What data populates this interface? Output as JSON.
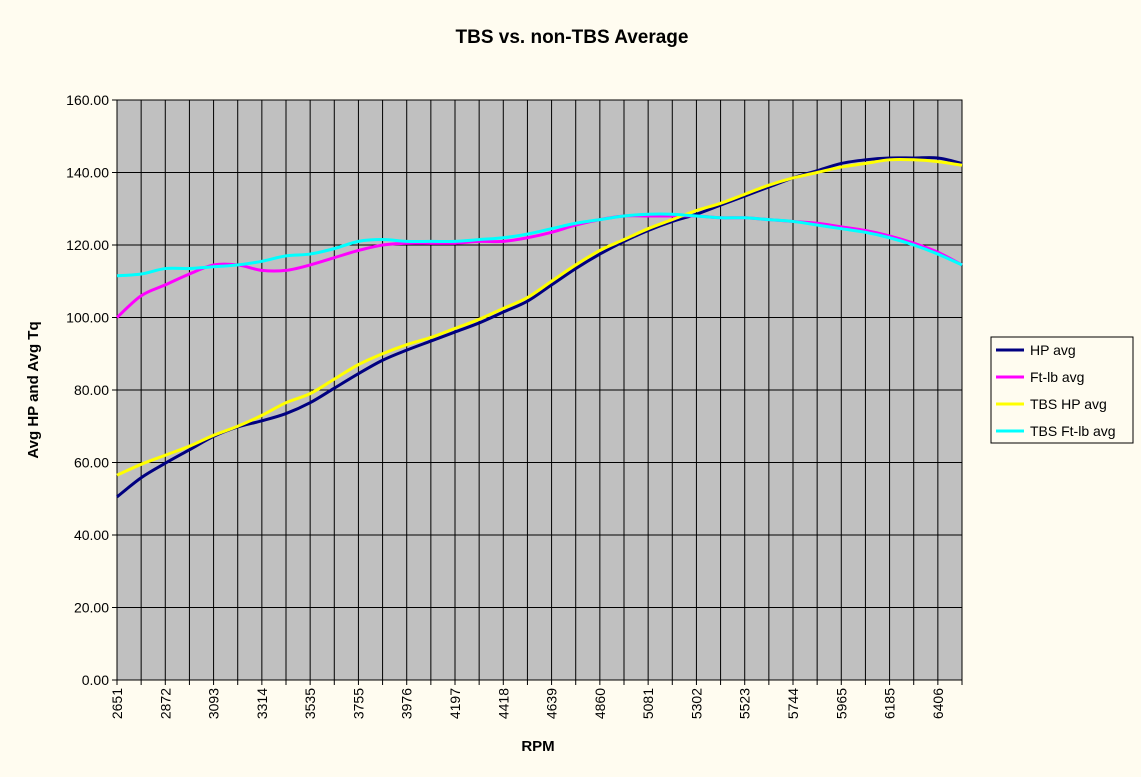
{
  "colors": {
    "background": "#FFFCF0",
    "plot_area": "#C0C0C0",
    "grid": "#000000"
  },
  "chart_data": {
    "type": "line",
    "title": "TBS vs. non-TBS Average",
    "xlabel": "RPM",
    "ylabel": "Avg HP and Avg Tq",
    "ylim": [
      0,
      160
    ],
    "yticks": [
      "0.00",
      "20.00",
      "40.00",
      "60.00",
      "80.00",
      "100.00",
      "120.00",
      "140.00",
      "160.00"
    ],
    "x_tick_labels": [
      "2651",
      "2872",
      "3093",
      "3314",
      "3535",
      "3755",
      "3976",
      "4197",
      "4418",
      "4639",
      "4860",
      "5081",
      "5302",
      "5523",
      "5744",
      "5965",
      "6185",
      "6406"
    ],
    "x": [
      2651,
      2761,
      2872,
      2982,
      3093,
      3203,
      3314,
      3424,
      3535,
      3645,
      3755,
      3866,
      3976,
      4086,
      4197,
      4308,
      4418,
      4528,
      4639,
      4750,
      4860,
      4970,
      5081,
      5192,
      5302,
      5412,
      5523,
      5634,
      5744,
      5854,
      5965,
      6075,
      6185,
      6296,
      6406,
      6516
    ],
    "grid": true,
    "legend_position": "right",
    "series": [
      {
        "name": "HP avg",
        "color": "#000080",
        "values": [
          50.5,
          55.8,
          59.8,
          63.5,
          67.2,
          69.8,
          71.5,
          73.5,
          76.5,
          80.5,
          84.5,
          88.2,
          91.0,
          93.5,
          96.0,
          98.5,
          101.5,
          104.5,
          109.0,
          113.5,
          117.5,
          121.0,
          124.0,
          126.5,
          128.5,
          131.0,
          133.5,
          136.0,
          138.5,
          140.5,
          142.5,
          143.5,
          144.0,
          144.0,
          144.0,
          142.5
        ]
      },
      {
        "name": "Ft-lb avg",
        "color": "#FF00FF",
        "values": [
          100.0,
          106.0,
          109.0,
          112.0,
          114.5,
          114.5,
          113.0,
          113.0,
          114.5,
          116.5,
          118.5,
          120.0,
          120.5,
          120.5,
          120.5,
          121.0,
          121.0,
          122.0,
          123.5,
          125.5,
          127.0,
          128.0,
          128.0,
          128.0,
          128.0,
          127.5,
          127.5,
          127.0,
          126.5,
          126.0,
          125.0,
          124.0,
          122.5,
          120.5,
          118.0,
          114.5
        ]
      },
      {
        "name": "TBS HP avg",
        "color": "#FFFF00",
        "values": [
          56.5,
          59.5,
          62.0,
          64.5,
          67.5,
          70.0,
          73.0,
          76.5,
          79.0,
          83.0,
          87.0,
          90.0,
          92.5,
          94.5,
          97.0,
          99.5,
          102.5,
          105.5,
          110.0,
          114.5,
          118.5,
          121.5,
          124.5,
          127.0,
          129.5,
          131.5,
          134.0,
          136.5,
          138.5,
          140.0,
          141.5,
          142.5,
          143.5,
          143.5,
          143.0,
          142.0
        ]
      },
      {
        "name": "TBS Ft-lb avg",
        "color": "#00FFFF",
        "values": [
          111.5,
          112.0,
          113.5,
          113.5,
          114.0,
          114.5,
          115.5,
          117.0,
          117.5,
          119.0,
          121.0,
          121.5,
          121.0,
          121.0,
          121.0,
          121.5,
          122.0,
          123.0,
          124.5,
          126.0,
          127.0,
          128.0,
          128.5,
          128.5,
          128.0,
          127.5,
          127.5,
          127.0,
          126.5,
          125.5,
          124.5,
          123.5,
          122.0,
          120.0,
          117.5,
          114.5
        ]
      }
    ]
  }
}
